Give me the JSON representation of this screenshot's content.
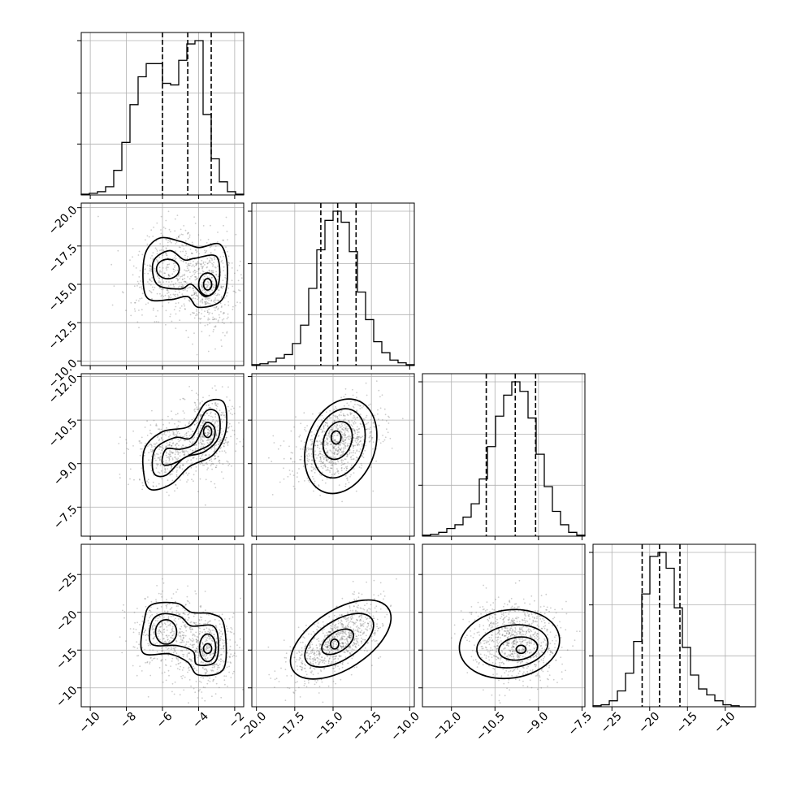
{
  "chart_data": {
    "type": "corner",
    "params": [
      {
        "ticks": [
          -10,
          -8,
          -6,
          -4,
          -2
        ],
        "range": [
          -10.5,
          -1.5
        ],
        "quantiles": [
          -6.0,
          -4.6,
          -3.3
        ],
        "mode": "bimodal",
        "hist": [
          0.5,
          1,
          2,
          5,
          15,
          32,
          55,
          72,
          80,
          80,
          68,
          67,
          82,
          92,
          94,
          49,
          22,
          8,
          2,
          0.5
        ]
      },
      {
        "ticks": [
          -20.0,
          -17.5,
          -15.0,
          -12.5,
          -10.0
        ],
        "range": [
          -20.3,
          -9.7
        ],
        "quantiles": [
          -15.8,
          -14.7,
          -13.5
        ],
        "mode": "unimodal",
        "hist": [
          0.5,
          1,
          2,
          4,
          6,
          12,
          22,
          42,
          63,
          79,
          84,
          78,
          62,
          40,
          25,
          13,
          7,
          3,
          1.5,
          0.5
        ]
      },
      {
        "ticks": [
          -12.0,
          -10.5,
          -9.0,
          -7.5
        ],
        "range": [
          -13.0,
          -7.4
        ],
        "quantiles": [
          -10.8,
          -9.8,
          -9.1
        ],
        "mode": "unimodal",
        "hist": [
          0.5,
          1,
          2,
          4,
          6,
          10,
          17,
          30,
          47,
          63,
          74,
          81,
          76,
          62,
          43,
          26,
          13,
          6,
          2,
          0.5
        ]
      },
      {
        "ticks": [
          -25,
          -20,
          -15,
          -10
        ],
        "range": [
          -27.5,
          -6.0
        ],
        "quantiles": [
          -21.0,
          -18.7,
          -16.0
        ],
        "mode": "unimodal",
        "hist": [
          0.5,
          1,
          3,
          8,
          17,
          33,
          57,
          76,
          78,
          70,
          50,
          30,
          16,
          9,
          6,
          3,
          1,
          0.5,
          0,
          0
        ]
      }
    ],
    "x_tick_labels": [
      [
        "−10",
        "−8",
        "−6",
        "−4",
        "−2"
      ],
      [
        "−20.0",
        "−17.5",
        "−15.0",
        "−12.5",
        "−10.0"
      ],
      [
        "−12.0",
        "−10.5",
        "−9.0",
        "−7.5"
      ],
      [
        "−25",
        "−20",
        "−15",
        "−10"
      ]
    ],
    "y_tick_labels": {
      "row1": [
        "−10.0",
        "−12.5",
        "−15.0",
        "−17.5",
        "−20.0"
      ],
      "row2": [
        "−7.5",
        "−9.0",
        "−10.5",
        "−12.0"
      ],
      "row3": [
        "−10",
        "−15",
        "−20",
        "−25"
      ]
    },
    "diag_y_ticks": [
      [
        0.33,
        0.66,
        1.0
      ],
      [
        0.33,
        0.66,
        1.0
      ],
      [
        0.33,
        0.66,
        1.0
      ],
      [
        0.33,
        0.66,
        1.0
      ]
    ],
    "title": "",
    "xlabel": "",
    "ylabel": "",
    "grid": true,
    "colors": {
      "line": "#000000",
      "grid": "#b0b0b0",
      "points": "#6e6e6e"
    }
  }
}
